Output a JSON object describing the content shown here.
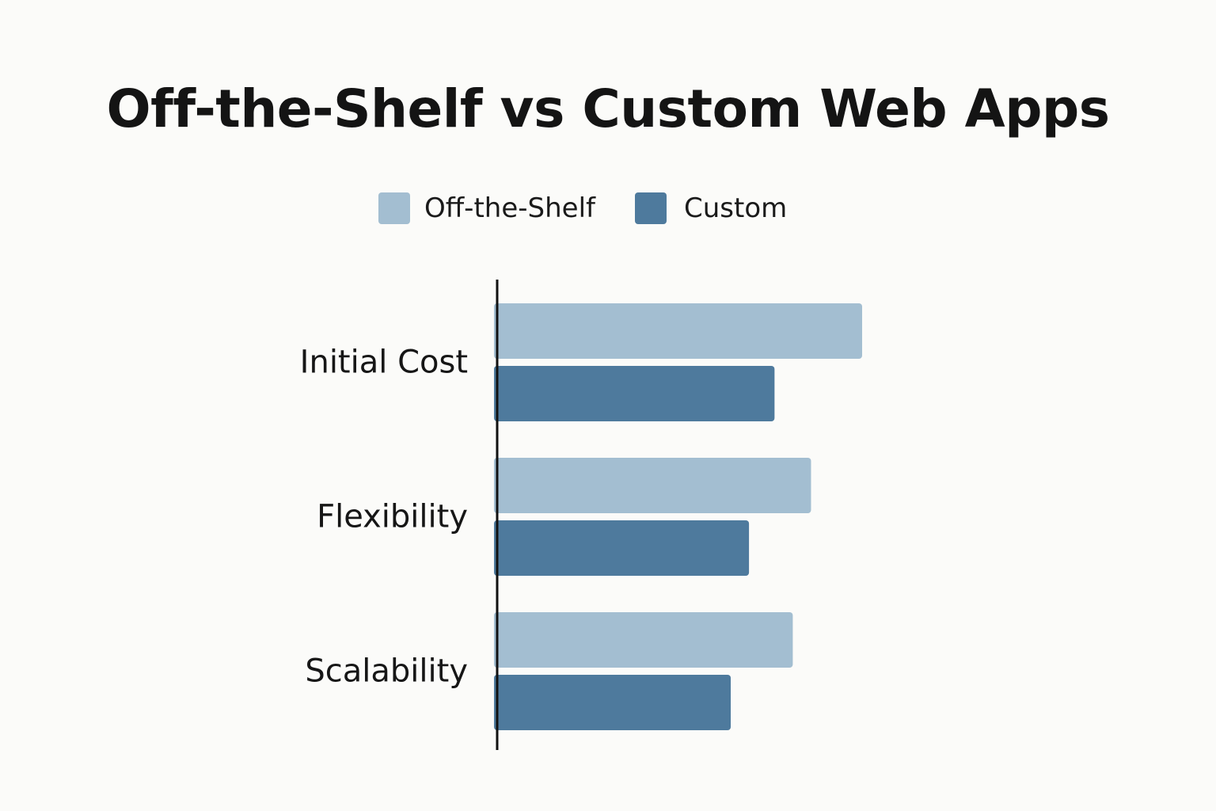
{
  "chart_data": {
    "type": "bar",
    "orientation": "horizontal",
    "title": "Off-the-Shelf vs Custom Web Apps",
    "categories": [
      "Initial Cost",
      "Flexibility",
      "Scalability"
    ],
    "series": [
      {
        "name": "Off-the-Shelf",
        "color": "#a3bed1",
        "values": [
          100,
          86,
          81
        ]
      },
      {
        "name": "Custom",
        "color": "#4e7a9d",
        "values": [
          76,
          69,
          64
        ]
      }
    ],
    "xlim": [
      0,
      100
    ],
    "value_axis_shown": false,
    "grid": false,
    "legend_position": "top-center",
    "axis_color": "#111111"
  }
}
